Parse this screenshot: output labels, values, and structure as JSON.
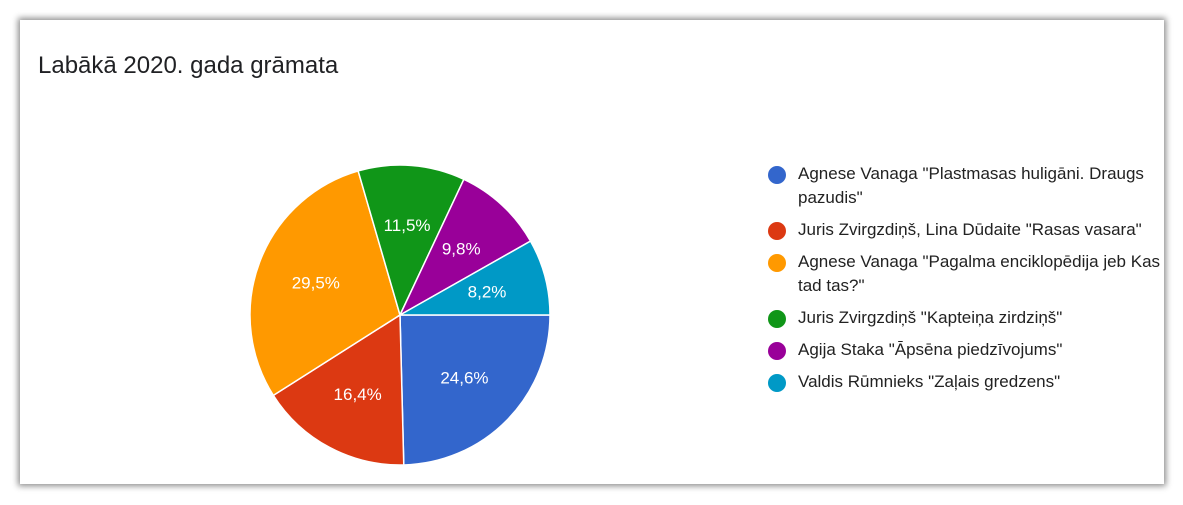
{
  "chart_data": {
    "type": "pie",
    "title": "Labākā 2020. gada grāmata",
    "slices": [
      {
        "label": "Agnese Vanaga \"Plastmasas huligāni. Draugs pazudis\"",
        "value": 24.6,
        "display": "24,6%",
        "color": "#3366cc"
      },
      {
        "label": "Juris Zvirgzdiņš, Lina Dūdaite \"Rasas vasara\"",
        "value": 16.4,
        "display": "16,4%",
        "color": "#dc3912"
      },
      {
        "label": "Agnese Vanaga \"Pagalma enciklopēdija jeb Kas tad tas?\"",
        "value": 29.5,
        "display": "29,5%",
        "color": "#ff9900"
      },
      {
        "label": "Juris Zvirgzdiņš \"Kapteiņa zirdziņš\"",
        "value": 11.5,
        "display": "11,5%",
        "color": "#109618"
      },
      {
        "label": "Agija Staka \"Āpsēna piedzīvojums\"",
        "value": 9.8,
        "display": "9,8%",
        "color": "#990099"
      },
      {
        "label": "Valdis Rūmnieks \"Zaļais gredzens\"",
        "value": 8.2,
        "display": "8,2%",
        "color": "#0099c6"
      }
    ],
    "start_angle": "3 o'clock",
    "direction": "clockwise",
    "legend_position": "right"
  }
}
